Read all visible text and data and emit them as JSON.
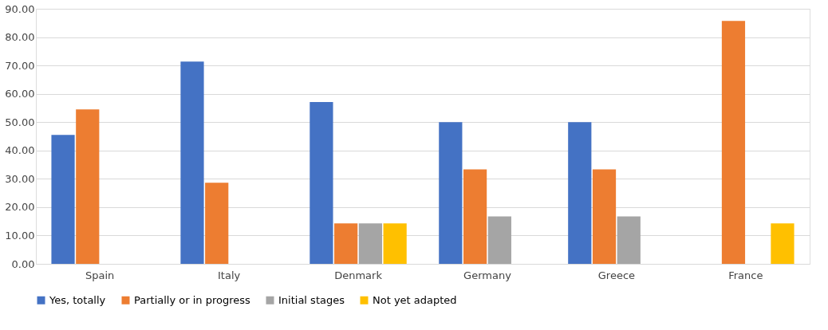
{
  "chart_data": {
    "type": "bar",
    "categories": [
      "Spain",
      "Italy",
      "Denmark",
      "Germany",
      "Greece",
      "France"
    ],
    "series": [
      {
        "name": "Yes, totally",
        "color": "#4472c4",
        "values": [
          45.5,
          71.4,
          57.1,
          50.0,
          50.0,
          null
        ]
      },
      {
        "name": "Partially or in progress",
        "color": "#ed7d31",
        "values": [
          54.5,
          28.6,
          14.3,
          33.3,
          33.3,
          85.7
        ]
      },
      {
        "name": "Initial stages",
        "color": "#a5a5a5",
        "values": [
          null,
          null,
          14.3,
          16.7,
          16.7,
          null
        ]
      },
      {
        "name": "Not yet adapted",
        "color": "#ffc000",
        "values": [
          null,
          null,
          14.3,
          null,
          null,
          14.3
        ]
      }
    ],
    "ylim": [
      0,
      90
    ],
    "yticks": [
      {
        "value": 0,
        "label": "0.00"
      },
      {
        "value": 10,
        "label": "10.00"
      },
      {
        "value": 20,
        "label": "20.00"
      },
      {
        "value": 30,
        "label": "30.00"
      },
      {
        "value": 40,
        "label": "40.00"
      },
      {
        "value": 50,
        "label": "50.00"
      },
      {
        "value": 60,
        "label": "60.00"
      },
      {
        "value": 70,
        "label": "70.00"
      },
      {
        "value": 80,
        "label": "80.00"
      },
      {
        "value": 90,
        "label": "90.00"
      }
    ],
    "grid": "y",
    "legend": "bottom"
  }
}
